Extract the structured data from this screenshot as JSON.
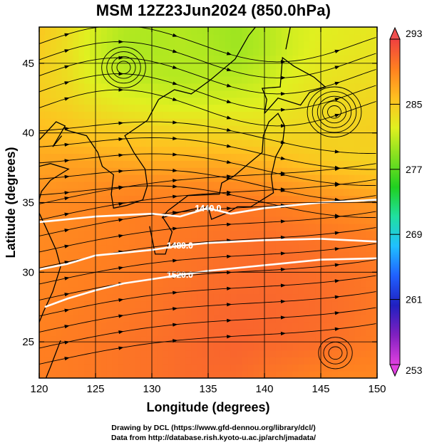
{
  "title": "MSM 12Z23Jun2024 (850.0hPa)",
  "credit": {
    "line1": "Drawing by DCL (https://www.gfd-dennou.org/library/dcl/)",
    "line2": "Data from http://database.rish.kyoto-u.ac.jp/arch/jmadata/"
  },
  "chart_data": {
    "type": "heatmap",
    "title": "MSM 12Z23Jun2024 (850.0hPa)",
    "xlabel": "Longitude (degrees)",
    "ylabel": "Latitude  (degrees)",
    "xlim": [
      120,
      150
    ],
    "ylim": [
      22.4,
      47.6
    ],
    "xticks": [
      120,
      125,
      130,
      135,
      140,
      145,
      150
    ],
    "yticks": [
      25,
      30,
      35,
      40,
      45
    ],
    "grid": true,
    "colorbar": {
      "ticks": [
        293,
        285,
        277,
        269,
        261,
        253
      ],
      "min": 253,
      "max": 293,
      "colors": [
        "#e040e0",
        "#8020c0",
        "#2020c0",
        "#2060ff",
        "#20c0ff",
        "#20e0a0",
        "#20d020",
        "#80e020",
        "#e0f020",
        "#ffc020",
        "#ff8020",
        "#f04040"
      ]
    },
    "temperature_field_K": {
      "description": "colour-shaded temperature",
      "lon_nodes": [
        120,
        122.5,
        125,
        127.5,
        130,
        132.5,
        135,
        137.5,
        140,
        142.5,
        145,
        147.5,
        150
      ],
      "lat_nodes": [
        22.4,
        25,
        27.5,
        30,
        32.5,
        35,
        36.5,
        38,
        40,
        42,
        44,
        46,
        47.6
      ],
      "rows": [
        [
          289.5,
          289.6,
          289.8,
          290,
          290.2,
          290.5,
          290.6,
          290.5,
          290,
          289.6,
          289.2,
          289,
          289
        ],
        [
          289.4,
          289.6,
          289.8,
          290,
          290.2,
          290.5,
          290.8,
          291,
          290.8,
          290.6,
          290.4,
          290,
          289.6
        ],
        [
          289.2,
          289.4,
          289.6,
          289.8,
          290,
          290.3,
          290.6,
          290.8,
          290.8,
          290.7,
          290.5,
          290.2,
          289.8
        ],
        [
          289,
          289.2,
          289.4,
          289.6,
          289.8,
          290,
          290.3,
          290.5,
          290.6,
          290.5,
          290.3,
          290.1,
          289.8
        ],
        [
          288.8,
          289,
          289.2,
          289.4,
          289.6,
          289.8,
          290,
          290.2,
          290.3,
          290.2,
          290,
          289.8,
          289.5
        ],
        [
          288.6,
          288.8,
          289,
          289.3,
          289.5,
          289.6,
          289.7,
          289.8,
          289.6,
          289.2,
          288.8,
          288.4,
          288
        ],
        [
          288,
          288.2,
          288.4,
          288.6,
          288.6,
          288.6,
          288.6,
          288.5,
          288.2,
          287.6,
          287,
          286.5,
          286
        ],
        [
          287.2,
          287.4,
          287.2,
          287,
          286.8,
          286.8,
          286.8,
          286.6,
          286.2,
          285.6,
          285,
          284.6,
          284.3
        ],
        [
          286,
          285.6,
          285.2,
          285,
          284.6,
          284.4,
          284.2,
          284,
          283.8,
          284,
          284.2,
          284.4,
          284.6
        ],
        [
          285,
          284.4,
          283.4,
          282.6,
          282.2,
          281.8,
          281.8,
          282,
          282.2,
          283,
          283.6,
          284,
          284.2
        ],
        [
          284.6,
          283.6,
          281.8,
          280.8,
          280.6,
          280.4,
          280.6,
          280.6,
          281.2,
          282.2,
          283,
          283.4,
          283.6
        ],
        [
          284.8,
          283.4,
          281.4,
          280.2,
          280.2,
          280.4,
          280.2,
          279.6,
          280.4,
          281.6,
          282.4,
          282.8,
          283
        ],
        [
          285.2,
          283.6,
          281.6,
          280.4,
          280.2,
          280.4,
          280,
          279.6,
          280.4,
          281.6,
          282.2,
          282.6,
          282.8
        ]
      ]
    },
    "geopotential_contours_m": [
      {
        "label": "1440.0",
        "lon": [
          120,
          125,
          130,
          132.5,
          135,
          137,
          140,
          145,
          150
        ],
        "lat": [
          33.6,
          34.0,
          34.2,
          34.0,
          34.6,
          34.2,
          34.6,
          35.0,
          35.2
        ]
      },
      {
        "label": "1480.0",
        "lon": [
          120,
          122.5,
          125,
          127.5,
          130,
          132.5,
          135,
          140,
          145,
          150
        ],
        "lat": [
          30.2,
          30.6,
          31.2,
          31.4,
          31.6,
          31.9,
          32.1,
          32.3,
          32.4,
          32.2
        ]
      },
      {
        "label": "1520.0",
        "lon": [
          120.5,
          122.5,
          125,
          127.5,
          130,
          132.5,
          135,
          140,
          145,
          150
        ],
        "lat": [
          27.5,
          28.1,
          28.7,
          29.2,
          29.5,
          29.8,
          30.1,
          30.5,
          30.9,
          31.0
        ]
      }
    ]
  }
}
